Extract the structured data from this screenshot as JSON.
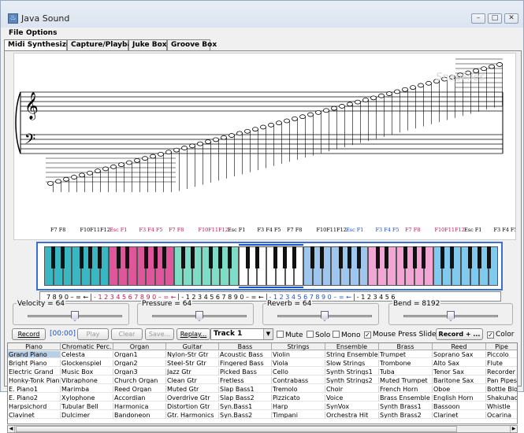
{
  "window": {
    "title": "Java Sound"
  },
  "menu": {
    "items": [
      "File",
      "Options"
    ]
  },
  "tabs": [
    "Midi Synthesizer",
    "Capture/Playback",
    "Juke Box",
    "Groove Box"
  ],
  "staff": {
    "watermark": "SnapFiles"
  },
  "fkey_labels": [
    {
      "text": "F7 F8",
      "color": "#000"
    },
    {
      "text": "F10F11F12",
      "color": "#000"
    },
    {
      "text": "Esc F1",
      "color": "#c0184b"
    },
    {
      "text": "F3 F4 F5",
      "color": "#c0184b"
    },
    {
      "text": "F7 F8",
      "color": "#c0184b"
    },
    {
      "text": "F10F11F12",
      "color": "#c0184b"
    },
    {
      "text": "Esc F1",
      "color": "#000"
    },
    {
      "text": "F3 F4 F5",
      "color": "#000"
    },
    {
      "text": "F7 F8",
      "color": "#000"
    },
    {
      "text": "F10F11F12",
      "color": "#000"
    },
    {
      "text": "Esc F1",
      "color": "#1a4fd0"
    },
    {
      "text": "F3 F4 F5",
      "color": "#1a4fd0"
    },
    {
      "text": "F7 F8",
      "color": "#c0184b"
    },
    {
      "text": "F10F11F12",
      "color": "#c0184b"
    },
    {
      "text": "Esc F1",
      "color": "#000"
    },
    {
      "text": "F3 F4 F5",
      "color": "#000"
    }
  ],
  "key_colors": [
    "#39b7c2",
    "#e0569a",
    "#7fdcc6",
    "#ffffff",
    "#9fc6ec",
    "#f2a6d3",
    "#7fcaee"
  ],
  "num_labels": [
    {
      "text": "7 8 9 0 – = ←",
      "color": "#000"
    },
    {
      "text": "- 1 2 3 4 5 6 7 8 9 0 – = ←",
      "color": "#c0184b"
    },
    {
      "text": "- 1 2 3 4 5 6 7 8 9 0 – = ←",
      "color": "#000"
    },
    {
      "text": "- 1 2 3 4 5 6 7 8 9 0 – = ←",
      "color": "#1a4fd0"
    },
    {
      "text": "- 1 2 3 4 5 6",
      "color": "#000"
    }
  ],
  "sliders": [
    {
      "label": "Velocity = 64",
      "level": 0.5
    },
    {
      "label": "Pressure = 64",
      "level": 0.5
    },
    {
      "label": "Reverb = 64",
      "level": 0.5
    },
    {
      "label": "Bend = 8192",
      "level": 0.5
    }
  ],
  "controls": {
    "record": "Record",
    "time": "[00:00]",
    "play": "Play",
    "clear": "Clear",
    "save": "Save...",
    "replay": "Replay...",
    "track": "Track 1",
    "mute": "Mute",
    "solo": "Solo",
    "mono": "Mono",
    "mouse_press_slide": "Mouse Press Slide",
    "record_plus": "Record + ...",
    "color": "Color",
    "checked": {
      "mute": false,
      "solo": false,
      "mono": false,
      "mouse_press_slide": true,
      "color": true
    }
  },
  "instruments": {
    "columns": [
      "Piano",
      "Chromatic Perc.",
      "Organ",
      "Guitar",
      "Bass",
      "Strings",
      "Ensemble",
      "Brass",
      "Reed",
      "Pipe"
    ],
    "rows": [
      [
        "Grand Piano",
        "Celesta",
        "Organ1",
        "Nylon-Str Gtr",
        "Acoustic Bass",
        "Violin",
        "String Ensemble",
        "Trumpet",
        "Soprano Sax",
        "Piccolo"
      ],
      [
        "Bright Piano",
        "Glockenspiel",
        "Organ2",
        "Steel-Str Gtr",
        "Fingered Bass",
        "Viola",
        "Slow Strings",
        "Trombone",
        "Alto Sax",
        "Flute"
      ],
      [
        "Electric Grand",
        "Music Box",
        "Organ3",
        "Jazz Gtr",
        "Picked Bass",
        "Cello",
        "Synth Strings1",
        "Tuba",
        "Tenor Sax",
        "Recorder"
      ],
      [
        "Honky-Tonk Piano",
        "Vibraphone",
        "Church Organ",
        "Clean Gtr",
        "Fretless",
        "Contrabass",
        "Synth Strings2",
        "Muted Trumpet",
        "Baritone Sax",
        "Pan Pipes"
      ],
      [
        "E. Piano1",
        "Marimba",
        "Reed Organ",
        "Muted Gtr",
        "Slap Bass1",
        "Tremolo",
        "Choir",
        "French Horn",
        "Oboe",
        "Bottle Blow"
      ],
      [
        "E. Piano2",
        "Xylophone",
        "Accordian",
        "Overdrive Gtr",
        "Slap Bass2",
        "Pizzicato",
        "Voice",
        "Brass Ensemble",
        "English Horn",
        "Shakuhachi"
      ],
      [
        "Harpsichord",
        "Tubular Bell",
        "Harmonica",
        "Distortion Gtr",
        "Syn.Bass1",
        "Harp",
        "SynVox",
        "Synth Brass1",
        "Bassoon",
        "Whistle"
      ],
      [
        "Clavinet",
        "Dulcimer",
        "Bandoneon",
        "Gtr. Harmonics",
        "Syn.Bass2",
        "Timpani",
        "Orchestra Hit",
        "Synth Brass2",
        "Clarinet",
        "Ocarina"
      ]
    ],
    "selected": [
      0,
      0
    ]
  }
}
